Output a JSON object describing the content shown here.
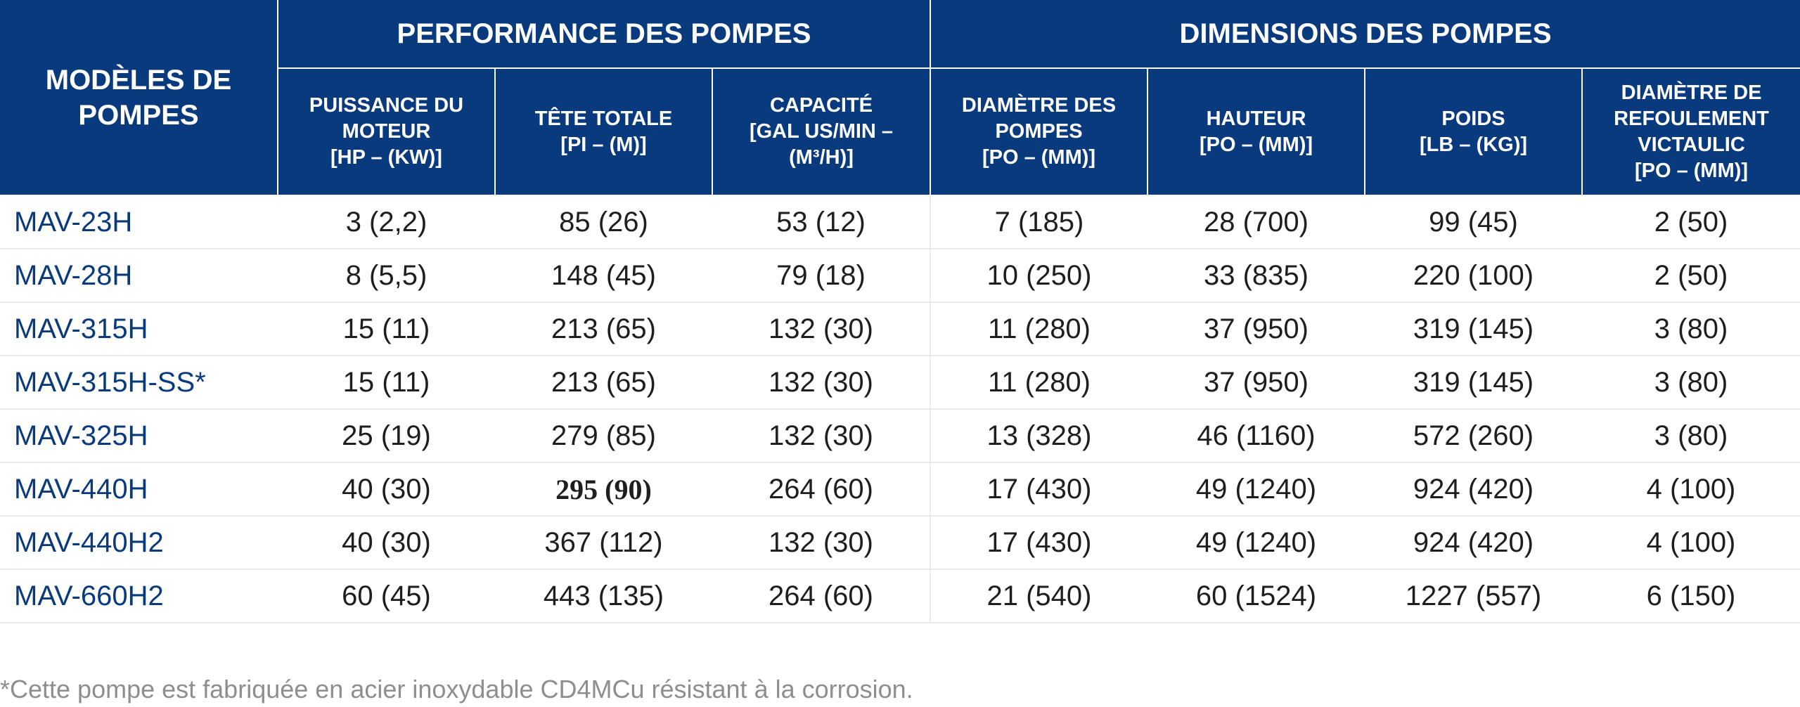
{
  "table": {
    "model_header": "MODÈLES DE POMPES",
    "groups": {
      "performance": "PERFORMANCE DES POMPES",
      "dimensions": "DIMENSIONS DES POMPES"
    },
    "columns": [
      {
        "title": "PUISSANCE DU MOTEUR",
        "unit": "[HP – (KW)]"
      },
      {
        "title": "TÊTE TOTALE",
        "unit": "[PI – (M)]"
      },
      {
        "title": "CAPACITÉ",
        "unit": "[GAL US/MIN – (M³/H)]"
      },
      {
        "title": "DIAMÈTRE DES POMPES",
        "unit": "[PO – (MM)]"
      },
      {
        "title": "HAUTEUR",
        "unit": "[PO – (MM)]"
      },
      {
        "title": "POIDS",
        "unit": "[LB – (KG)]"
      },
      {
        "title": "DIAMÈTRE DE REFOULEMENT VICTAULIC",
        "unit": "[PO – (MM)]"
      }
    ],
    "rows": [
      {
        "model": "MAV-23H",
        "values": [
          "3 (2,2)",
          "85 (26)",
          "53 (12)",
          "7 (185)",
          "28 (700)",
          "99 (45)",
          "2 (50)"
        ]
      },
      {
        "model": "MAV-28H",
        "values": [
          "8 (5,5)",
          "148 (45)",
          "79 (18)",
          "10 (250)",
          "33 (835)",
          "220 (100)",
          "2 (50)"
        ]
      },
      {
        "model": "MAV-315H",
        "values": [
          "15 (11)",
          "213 (65)",
          "132 (30)",
          "11 (280)",
          "37 (950)",
          "319 (145)",
          "3 (80)"
        ]
      },
      {
        "model": "MAV-315H-SS*",
        "values": [
          "15 (11)",
          "213 (65)",
          "132 (30)",
          "11 (280)",
          "37 (950)",
          "319 (145)",
          "3 (80)"
        ]
      },
      {
        "model": "MAV-325H",
        "values": [
          "25 (19)",
          "279 (85)",
          "132 (30)",
          "13 (328)",
          "46 (1160)",
          "572 (260)",
          "3 (80)"
        ]
      },
      {
        "model": "MAV-440H",
        "values": [
          "40 (30)",
          "295 (90)",
          "264 (60)",
          "17 (430)",
          "49 (1240)",
          "924 (420)",
          "4 (100)"
        ]
      },
      {
        "model": "MAV-440H2",
        "values": [
          "40 (30)",
          "367 (112)",
          "132 (30)",
          "17 (430)",
          "49 (1240)",
          "924 (420)",
          "4 (100)"
        ]
      },
      {
        "model": "MAV-660H2",
        "values": [
          "60 (45)",
          "443 (135)",
          "264 (60)",
          "21 (540)",
          "60 (1524)",
          "1227 (557)",
          "6 (150)"
        ]
      }
    ]
  },
  "footnote": "*Cette pompe est fabriquée en acier inoxydable CD4MCu résistant à la corrosion.",
  "colors": {
    "header_bg": "#0a3a7e",
    "model_text": "#0a3a7e",
    "footnote_text": "#8e8e8e"
  }
}
